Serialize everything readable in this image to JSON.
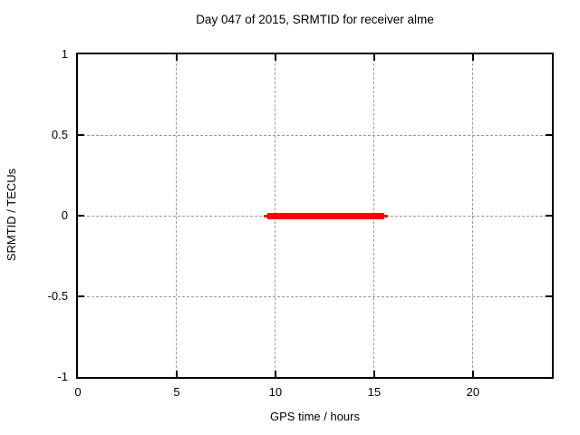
{
  "figure": {
    "background": "#ffffff",
    "text_color": "#000000"
  },
  "chart_data": {
    "type": "line",
    "title": "Day 047 of 2015, SRMTID for receiver alme",
    "xlabel": "GPS time / hours",
    "ylabel": "SRMTID / TECUs",
    "xlim": [
      0,
      24
    ],
    "ylim": [
      -1,
      1
    ],
    "xticks": [
      0,
      5,
      10,
      15,
      20
    ],
    "yticks": [
      1,
      0.5,
      0,
      -0.5,
      -1
    ],
    "xtick_labels": [
      "0",
      "5",
      "10",
      "15",
      "20"
    ],
    "ytick_labels": [
      "1",
      "0.5",
      "0",
      "-0.5",
      "-1"
    ],
    "grid": true,
    "grid_color": "#999999",
    "border_color": "#000000",
    "legend_position": "none",
    "series": [
      {
        "name": "SRMTID",
        "color": "#ff0000",
        "style": "thick-line",
        "y": 0,
        "x_start": 9.6,
        "x_end": 15.5,
        "points": [
          [
            9.6,
            0
          ],
          [
            15.5,
            0
          ]
        ]
      }
    ]
  }
}
